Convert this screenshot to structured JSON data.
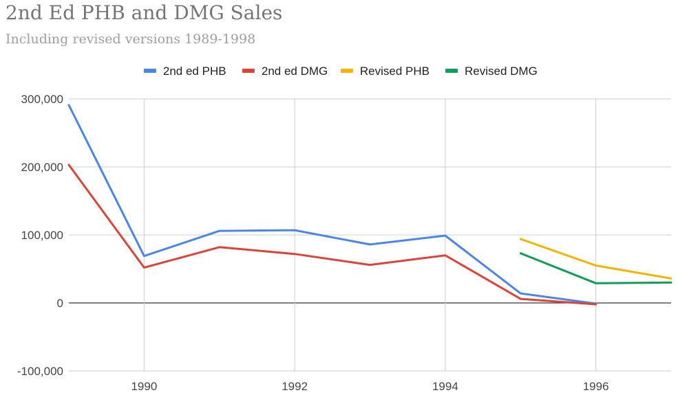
{
  "chart_data": {
    "type": "line",
    "title": "2nd Ed PHB and DMG Sales",
    "subtitle": "Including revised versions 1989-1998",
    "xlim": [
      1989,
      1997
    ],
    "ylim": [
      -100000,
      300000
    ],
    "x_ticks": [
      1990,
      1992,
      1994,
      1996
    ],
    "y_ticks": [
      -100000,
      0,
      100000,
      200000,
      300000
    ],
    "y_tick_labels": [
      "-100,000",
      "0",
      "100,000",
      "200,000",
      "300,000"
    ],
    "grid": true,
    "legend_position": "top",
    "series": [
      {
        "name": "2nd ed PHB",
        "color": "#4a86e8",
        "points": [
          [
            1989,
            291000
          ],
          [
            1990,
            69000
          ],
          [
            1991,
            106000
          ],
          [
            1992,
            107000
          ],
          [
            1993,
            86000
          ],
          [
            1994,
            99000
          ],
          [
            1995,
            14000
          ],
          [
            1996,
            -1000
          ]
        ]
      },
      {
        "name": "2nd ed DMG",
        "color": "#db4437",
        "points": [
          [
            1989,
            203000
          ],
          [
            1990,
            52000
          ],
          [
            1991,
            82000
          ],
          [
            1992,
            72000
          ],
          [
            1993,
            56000
          ],
          [
            1994,
            70000
          ],
          [
            1995,
            6000
          ],
          [
            1996,
            -2000
          ]
        ]
      },
      {
        "name": "Revised PHB",
        "color": "#f4b400",
        "points": [
          [
            1995,
            94000
          ],
          [
            1996,
            55000
          ],
          [
            1997,
            36000
          ]
        ]
      },
      {
        "name": "Revised DMG",
        "color": "#0f9d58",
        "points": [
          [
            1995,
            73000
          ],
          [
            1996,
            29000
          ],
          [
            1997,
            30000
          ]
        ]
      }
    ]
  }
}
